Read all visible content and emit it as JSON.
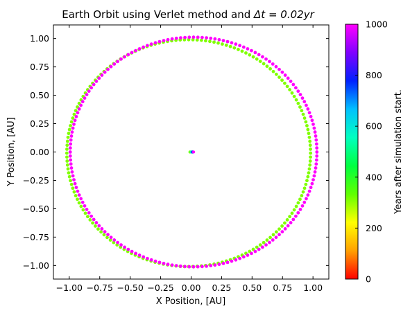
{
  "chart_data": {
    "type": "scatter",
    "title_prefix": "Earth Orbit using Verlet method and ",
    "title_math": "Δt = 0.02yr",
    "xlabel": "X Position, [AU]",
    "ylabel": "Y Position, [AU]",
    "xlim": [
      -1.13,
      1.13
    ],
    "ylim": [
      -1.12,
      1.12
    ],
    "xticks": [
      -1.0,
      -0.75,
      -0.5,
      -0.25,
      0.0,
      0.25,
      0.5,
      0.75,
      1.0
    ],
    "xtick_labels": [
      "−1.00",
      "−0.75",
      "−0.50",
      "−0.25",
      "0.00",
      "0.25",
      "0.50",
      "0.75",
      "1.00"
    ],
    "yticks": [
      -1.0,
      -0.75,
      -0.5,
      -0.25,
      0.0,
      0.25,
      0.5,
      0.75,
      1.0
    ],
    "ytick_labels": [
      "−1.00",
      "−0.75",
      "−0.50",
      "−0.25",
      "0.00",
      "0.25",
      "0.50",
      "0.75",
      "1.00"
    ],
    "grid": false,
    "orbit": {
      "description": "Earth positions, one marker per step, colored by years after simulation start",
      "radius_x": 1.0,
      "radius_y": 1.0,
      "center": [
        0.0,
        0.0
      ],
      "start_color": "#80ff00",
      "end_color": "#ff00ff",
      "earliest_offset": [
        -0.02,
        -0.01
      ],
      "final_offset": [
        0.02,
        0.0
      ],
      "final_radius_growth": 0.012
    },
    "sun": {
      "x": 0.02,
      "y": 0.0,
      "trail_x": [
        -0.01,
        0.0,
        0.01,
        0.02
      ],
      "trail_colors": [
        "#80ff00",
        "#00ffb0",
        "#0040ff",
        "#ff00ff"
      ]
    },
    "colorbar": {
      "label": "Years after simulation start.",
      "range": [
        0,
        1000
      ],
      "ticks": [
        0,
        200,
        400,
        600,
        800,
        1000
      ],
      "tick_labels": [
        "0",
        "200",
        "400",
        "600",
        "800",
        "1000"
      ],
      "colormap": [
        "#ff0000",
        "#ffa000",
        "#ffff00",
        "#60ff00",
        "#00ff40",
        "#00ffc0",
        "#00c0ff",
        "#0020ff",
        "#8000ff",
        "#ff00ff"
      ]
    }
  }
}
